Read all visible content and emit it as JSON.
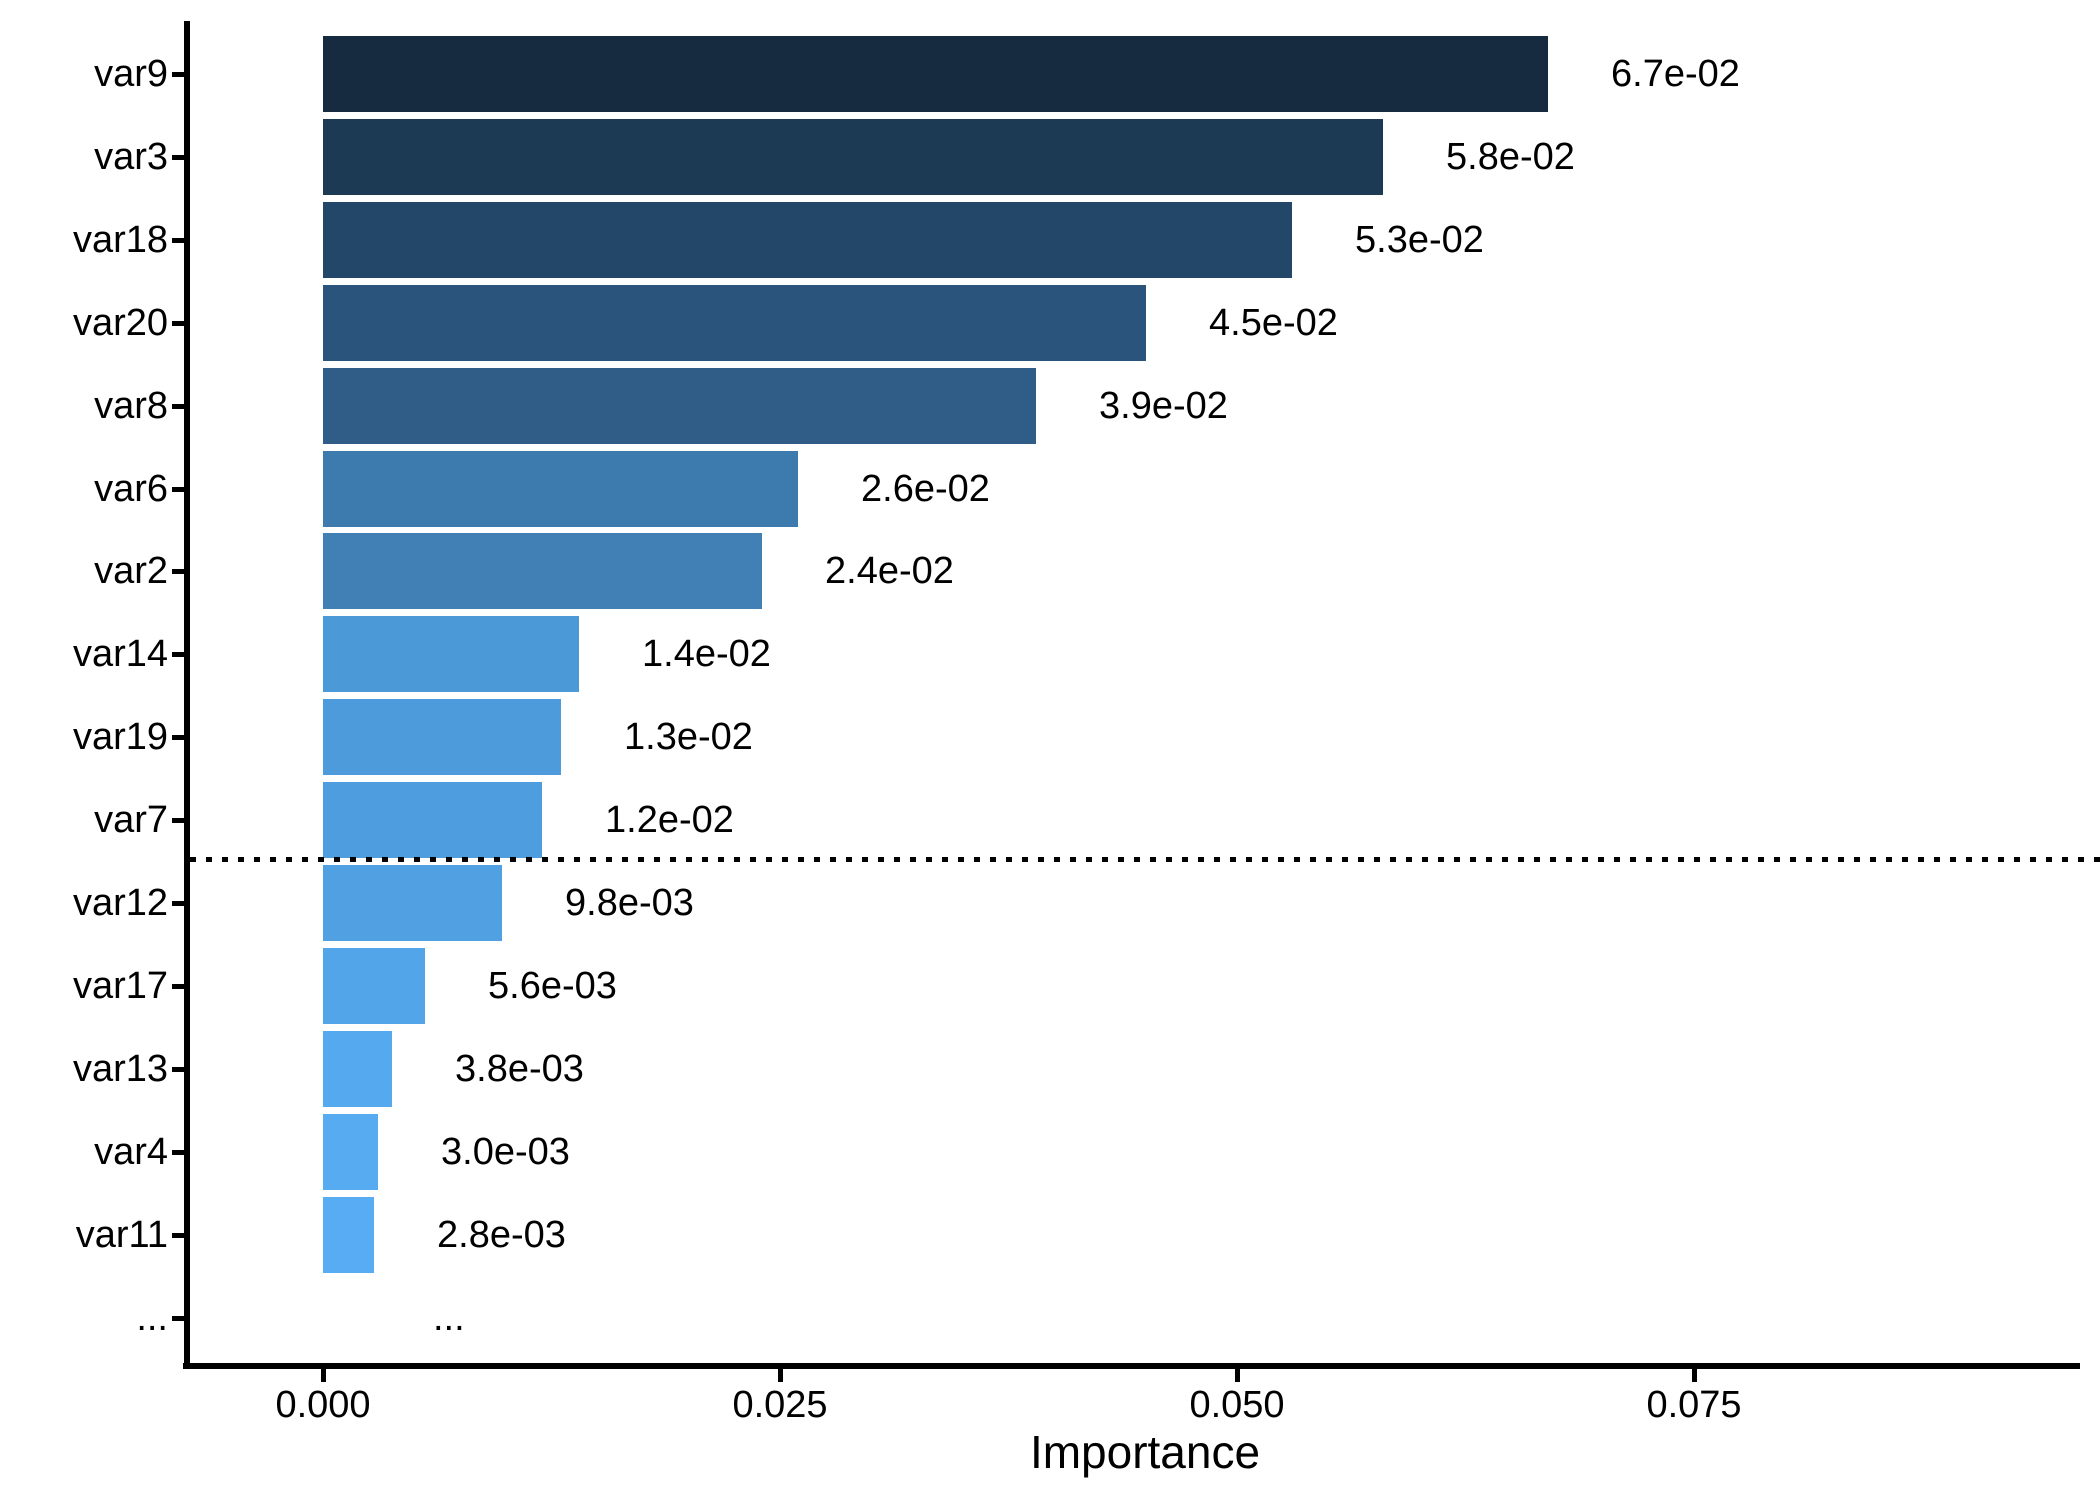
{
  "chart_data": {
    "type": "bar",
    "orientation": "horizontal",
    "title": "",
    "xlabel": "Importance",
    "ylabel": "",
    "legend": "none",
    "grid": "off",
    "background_color": "#FFFFFF",
    "axis_color": "#000000",
    "text_color": "#000000",
    "categories": [
      "var9",
      "var3",
      "var18",
      "var20",
      "var8",
      "var6",
      "var2",
      "var14",
      "var19",
      "var7",
      "var12",
      "var17",
      "var13",
      "var4",
      "var11",
      "..."
    ],
    "values": [
      0.067,
      0.058,
      0.053,
      0.045,
      0.039,
      0.026,
      0.024,
      0.014,
      0.013,
      0.012,
      0.0098,
      0.0056,
      0.0038,
      0.003,
      0.0028,
      null
    ],
    "value_labels": [
      "6.7e-02",
      "5.8e-02",
      "5.3e-02",
      "4.5e-02",
      "3.9e-02",
      "2.6e-02",
      "2.4e-02",
      "1.4e-02",
      "1.3e-02",
      "1.2e-02",
      "9.8e-03",
      "5.6e-03",
      "3.8e-03",
      "3.0e-03",
      "2.8e-03",
      "..."
    ],
    "bar_colors": [
      "#162A40",
      "#1D3A55",
      "#234769",
      "#2B547C",
      "#2F5D88",
      "#3D7AAD",
      "#4080B5",
      "#4C99D8",
      "#4D9BDB",
      "#4E9DDE",
      "#50A0E2",
      "#53A5E9",
      "#55A9EE",
      "#56ABF1",
      "#57ACF3",
      null
    ],
    "x_ticks": {
      "values": [
        0,
        0.025,
        0.05,
        0.075
      ],
      "labels": [
        "0.000",
        "0.025",
        "0.050",
        "0.075"
      ]
    },
    "xlim": [
      -0.0076,
      0.0972
    ],
    "threshold_line": {
      "style": "dotted",
      "color": "#000000",
      "between": [
        "var7",
        "var12"
      ]
    }
  }
}
